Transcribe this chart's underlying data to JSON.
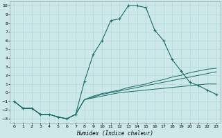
{
  "xlabel": "Humidex (Indice chaleur)",
  "bg_color": "#cce8e8",
  "grid_color": "#aad4d4",
  "line_color": "#1a6b6b",
  "xlim": [
    -0.5,
    23.5
  ],
  "ylim": [
    -3.5,
    10.5
  ],
  "xticks": [
    0,
    1,
    2,
    3,
    4,
    5,
    6,
    7,
    8,
    9,
    10,
    11,
    12,
    13,
    14,
    15,
    16,
    17,
    18,
    19,
    20,
    21,
    22,
    23
  ],
  "yticks": [
    -3,
    -2,
    -1,
    0,
    1,
    2,
    3,
    4,
    5,
    6,
    7,
    8,
    9,
    10
  ],
  "main_x": [
    0,
    1,
    2,
    3,
    4,
    5,
    6,
    7,
    8,
    9,
    10,
    11,
    12,
    13,
    14,
    15,
    16,
    17,
    18,
    19,
    20,
    21,
    22,
    23
  ],
  "main_y": [
    -1,
    -1.8,
    -1.8,
    -2.5,
    -2.5,
    -2.8,
    -3.0,
    -2.5,
    1.3,
    4.4,
    6.0,
    8.3,
    8.5,
    10.0,
    10.0,
    9.8,
    7.2,
    6.0,
    3.8,
    2.5,
    1.2,
    0.8,
    0.3,
    -0.2
  ],
  "fl1_x": [
    0,
    1,
    2,
    3,
    4,
    5,
    6,
    7,
    8,
    9,
    10,
    11,
    12,
    13,
    14,
    15,
    16,
    17,
    18,
    19,
    20,
    21,
    22,
    23
  ],
  "fl1_y": [
    -1,
    -1.8,
    -1.8,
    -2.5,
    -2.5,
    -2.8,
    -3.0,
    -2.5,
    -0.8,
    -0.6,
    -0.4,
    -0.2,
    0.0,
    0.1,
    0.2,
    0.3,
    0.4,
    0.5,
    0.6,
    0.7,
    0.8,
    0.9,
    1.0,
    1.0
  ],
  "fl2_x": [
    0,
    1,
    2,
    3,
    4,
    5,
    6,
    7,
    8,
    9,
    10,
    11,
    12,
    13,
    14,
    15,
    16,
    17,
    18,
    19,
    20,
    21,
    22,
    23
  ],
  "fl2_y": [
    -1,
    -1.8,
    -1.8,
    -2.5,
    -2.5,
    -2.8,
    -3.0,
    -2.5,
    -0.8,
    -0.5,
    -0.2,
    0.0,
    0.2,
    0.4,
    0.6,
    0.8,
    1.0,
    1.2,
    1.4,
    1.6,
    1.8,
    2.0,
    2.2,
    2.4
  ],
  "fl3_x": [
    0,
    1,
    2,
    3,
    4,
    5,
    6,
    7,
    8,
    9,
    10,
    11,
    12,
    13,
    14,
    15,
    16,
    17,
    18,
    19,
    20,
    21,
    22,
    23
  ],
  "fl3_y": [
    -1,
    -1.8,
    -1.8,
    -2.5,
    -2.5,
    -2.8,
    -3.0,
    -2.5,
    -0.8,
    -0.4,
    -0.1,
    0.1,
    0.3,
    0.6,
    0.8,
    1.0,
    1.3,
    1.5,
    1.8,
    2.0,
    2.3,
    2.5,
    2.7,
    2.8
  ]
}
